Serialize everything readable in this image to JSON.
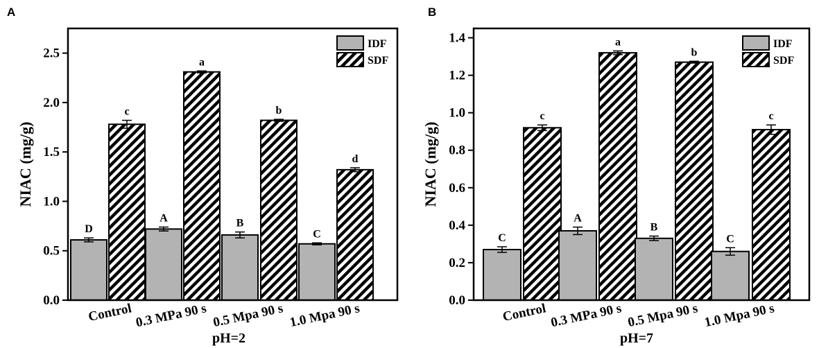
{
  "chart_data": [
    {
      "type": "bar",
      "panel_label": "A",
      "categories": [
        "Control",
        "0.3 MPa 90 s",
        "0.5 Mpa 90 s",
        "1.0 Mpa 90 s"
      ],
      "series": [
        {
          "name": "IDF",
          "values": [
            0.61,
            0.72,
            0.66,
            0.57
          ],
          "errors": [
            0.02,
            0.02,
            0.03,
            0.01
          ],
          "letters": [
            "D",
            "A",
            "B",
            "C"
          ]
        },
        {
          "name": "SDF",
          "values": [
            1.78,
            2.31,
            1.82,
            1.32
          ],
          "errors": [
            0.04,
            0.01,
            0.01,
            0.02
          ],
          "letters": [
            "c",
            "a",
            "b",
            "d"
          ]
        }
      ],
      "xlabel": "pH=2",
      "ylabel": "NIAC (mg/g)",
      "ylim": [
        0,
        2.75
      ],
      "yticks": [
        "0.0",
        "0.5",
        "1.0",
        "1.5",
        "2.0",
        "2.5"
      ],
      "ytick_values": [
        0,
        0.5,
        1.0,
        1.5,
        2.0,
        2.5
      ],
      "legend": "top-right",
      "grid": false,
      "colors": {
        "IDF": "#b3b3b3",
        "SDF": "hatched"
      }
    },
    {
      "type": "bar",
      "panel_label": "B",
      "categories": [
        "Control",
        "0.3 MPa 90 s",
        "0.5 Mpa 90 s",
        "1.0 Mpa 90 s"
      ],
      "series": [
        {
          "name": "IDF",
          "values": [
            0.27,
            0.37,
            0.33,
            0.26
          ],
          "errors": [
            0.015,
            0.02,
            0.012,
            0.02
          ],
          "letters": [
            "C",
            "A",
            "B",
            "C"
          ]
        },
        {
          "name": "SDF",
          "values": [
            0.92,
            1.32,
            1.27,
            0.91
          ],
          "errors": [
            0.015,
            0.01,
            0.005,
            0.025
          ],
          "letters": [
            "c",
            "a",
            "b",
            "c"
          ]
        }
      ],
      "xlabel": "pH=7",
      "ylabel": "NIAC (mg/g)",
      "ylim": [
        0,
        1.45
      ],
      "yticks": [
        "0.0",
        "0.2",
        "0.4",
        "0.6",
        "0.8",
        "1.0",
        "1.2",
        "1.4"
      ],
      "ytick_values": [
        0,
        0.2,
        0.4,
        0.6,
        0.8,
        1.0,
        1.2,
        1.4
      ],
      "legend": "top-right",
      "grid": false,
      "colors": {
        "IDF": "#b3b3b3",
        "SDF": "hatched"
      }
    }
  ]
}
